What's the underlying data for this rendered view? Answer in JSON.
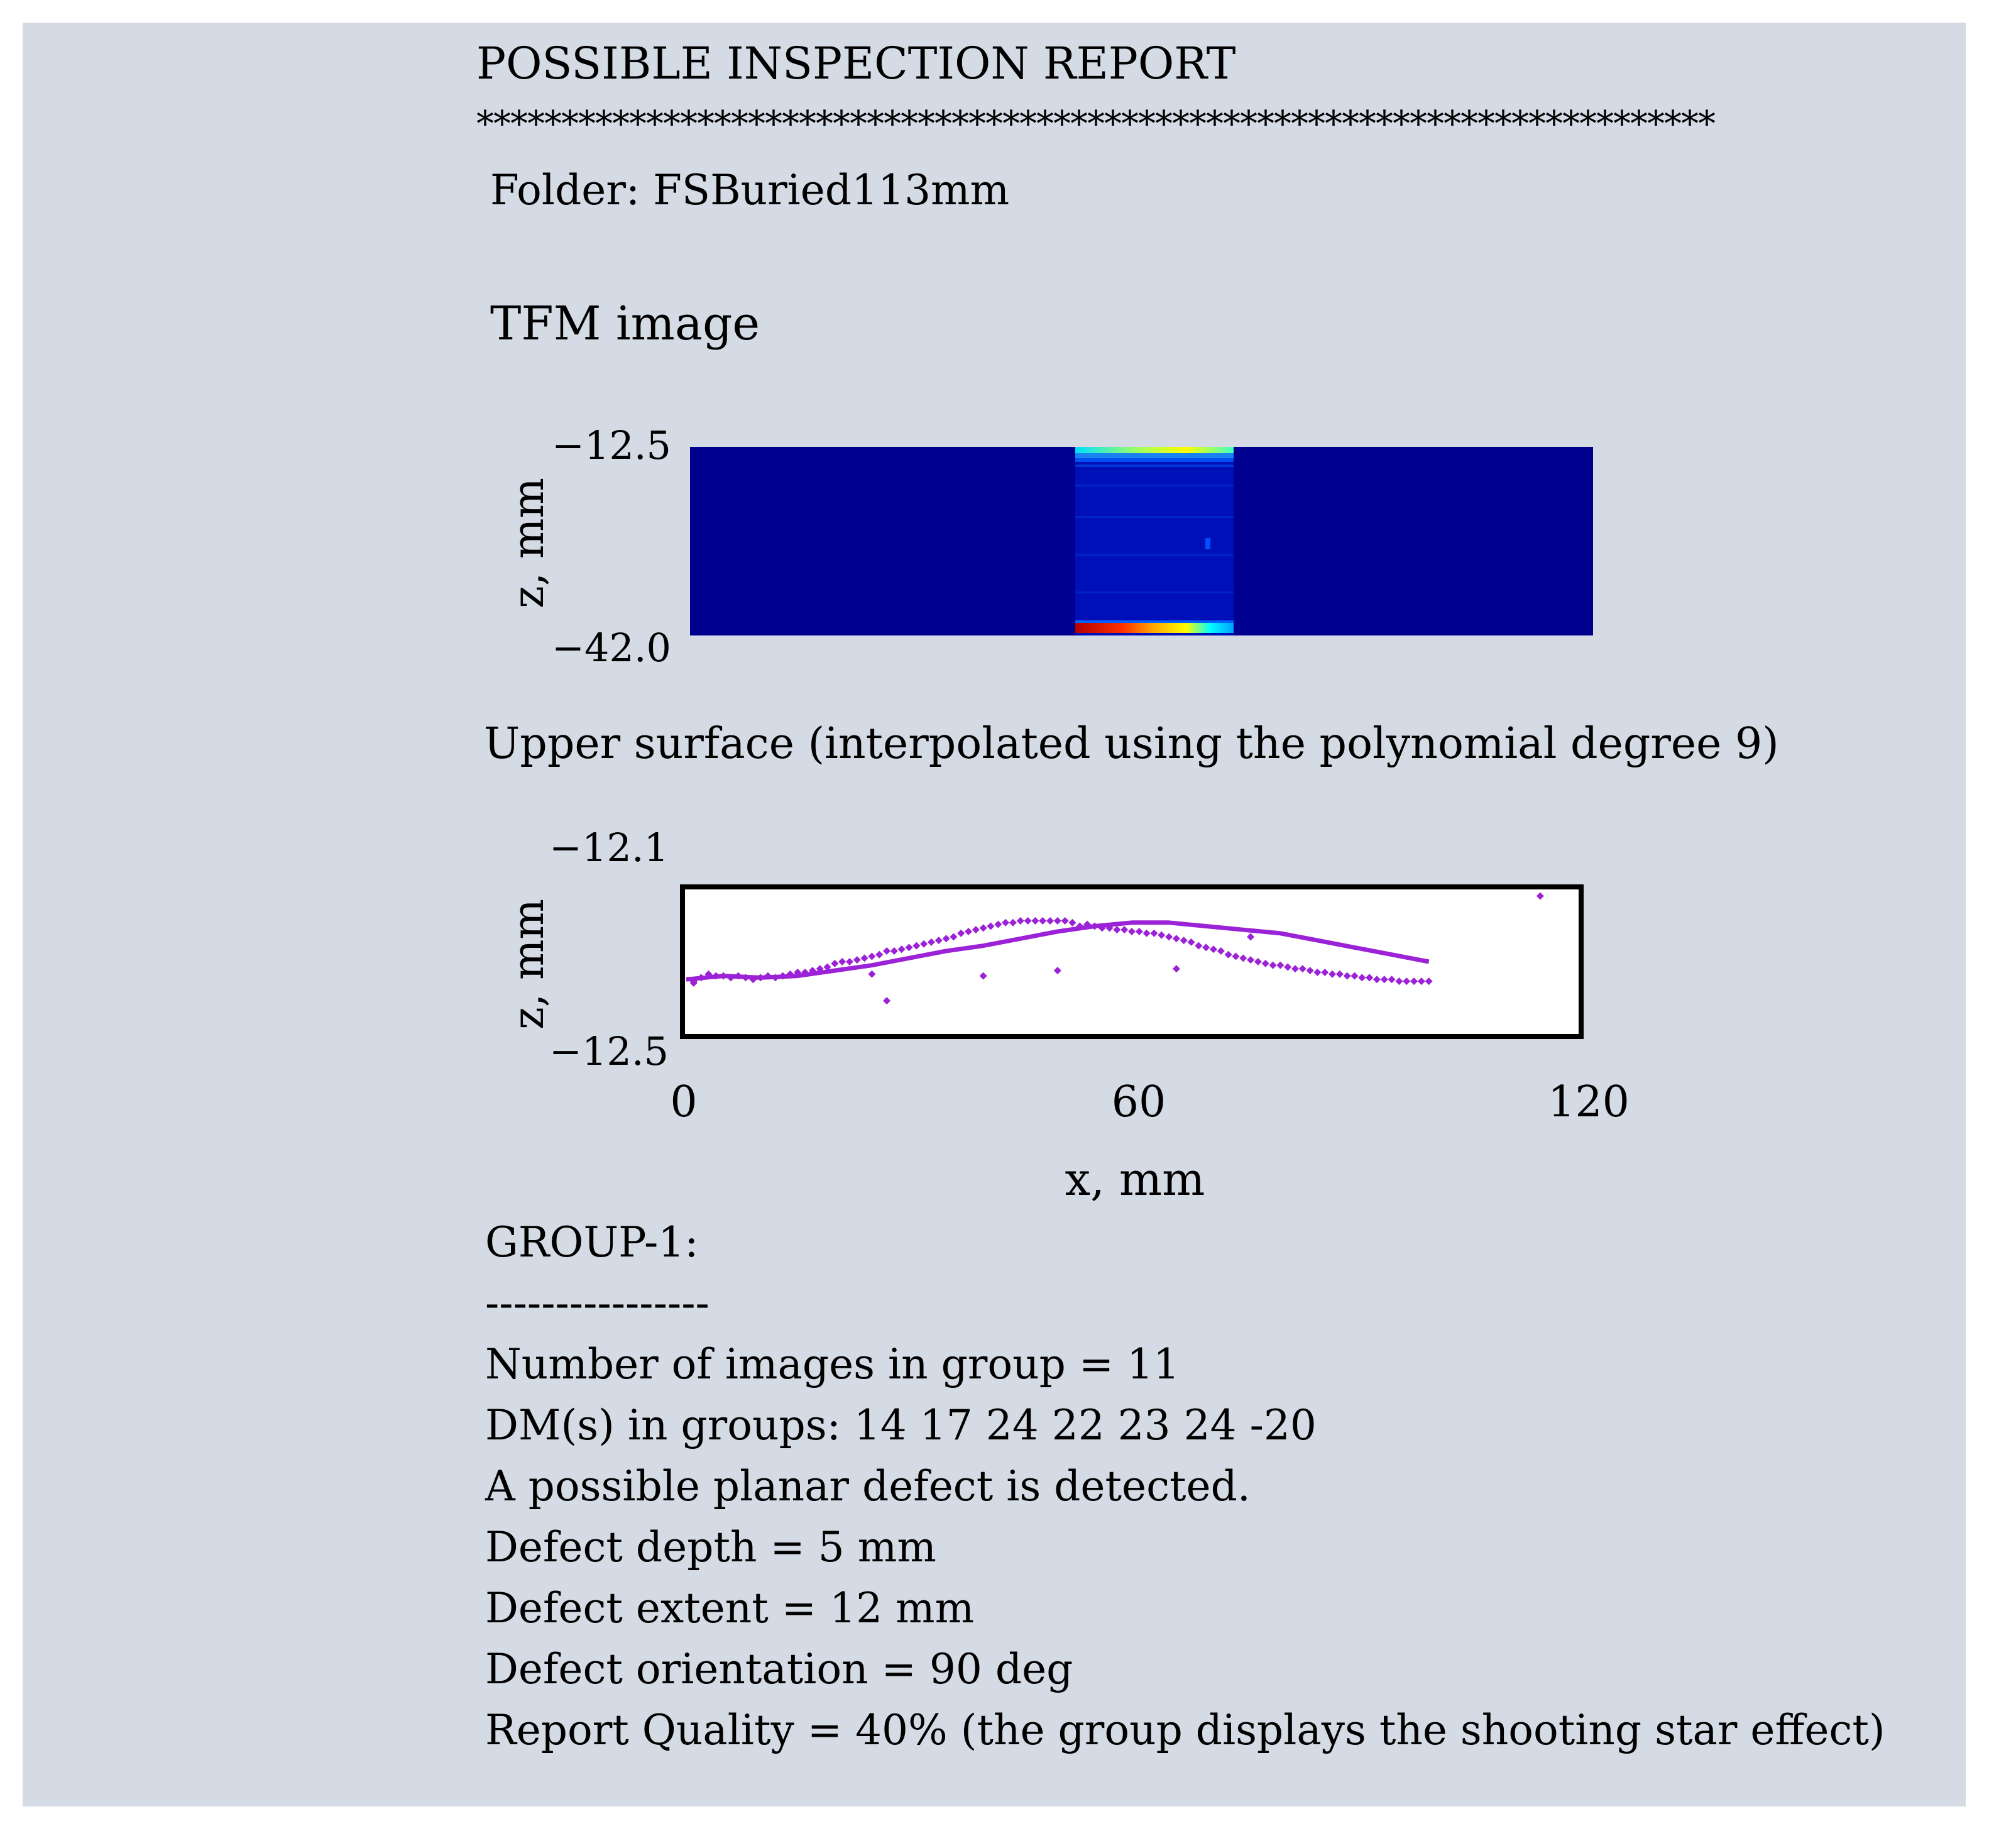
{
  "report": {
    "title": "POSSIBLE INSPECTION REPORT",
    "separator": "*************************************************************************",
    "folder": "Folder: FSBuried113mm"
  },
  "tfm": {
    "heading": "TFM image",
    "ytick_top": "−12.5",
    "ytick_bottom": "−42.0",
    "ylabel": "z, mm",
    "colors": {
      "background": "#00008f",
      "hot": "#b30000",
      "warm": "#ffff00",
      "mid": "#00ffff"
    }
  },
  "surface": {
    "heading": "Upper surface (interpolated using the polynomial degree 9)",
    "ytick_top": "−12.1",
    "ytick_bottom": "−12.5",
    "ylabel": "z, mm",
    "xticks": [
      "0",
      "60",
      "120"
    ],
    "xlabel": "x, mm",
    "color": "#9b22d6"
  },
  "chart_data": {
    "type": "scatter",
    "xlim": [
      0,
      120
    ],
    "ylim": [
      -12.5,
      -12.1
    ],
    "xlabel": "x, mm",
    "ylabel": "z, mm",
    "grid": false,
    "fit_curve": {
      "x": [
        0,
        5,
        10,
        15,
        20,
        25,
        30,
        35,
        40,
        45,
        50,
        55,
        60,
        65,
        70,
        75,
        80,
        85,
        90,
        95,
        100
      ],
      "y": [
        -12.35,
        -12.34,
        -12.345,
        -12.34,
        -12.325,
        -12.31,
        -12.29,
        -12.27,
        -12.255,
        -12.235,
        -12.215,
        -12.2,
        -12.19,
        -12.19,
        -12.2,
        -12.21,
        -12.22,
        -12.24,
        -12.26,
        -12.28,
        -12.3
      ]
    },
    "points": {
      "x": [
        1,
        2,
        3,
        4,
        5,
        6,
        7,
        8,
        9,
        10,
        11,
        12,
        13,
        14,
        15,
        16,
        17,
        18,
        19,
        20,
        21,
        22,
        23,
        24,
        25,
        26,
        27,
        28,
        29,
        30,
        31,
        32,
        33,
        34,
        35,
        36,
        37,
        38,
        39,
        40,
        41,
        42,
        43,
        44,
        45,
        46,
        47,
        48,
        49,
        50,
        51,
        52,
        53,
        54,
        55,
        56,
        57,
        58,
        59,
        60,
        61,
        62,
        63,
        64,
        65,
        66,
        67,
        68,
        69,
        70,
        71,
        72,
        73,
        74,
        75,
        76,
        77,
        78,
        79,
        80,
        81,
        82,
        83,
        84,
        85,
        86,
        87,
        88,
        89,
        90,
        91,
        92,
        93,
        94,
        95,
        96,
        97,
        98,
        99,
        100,
        25,
        27,
        40,
        50,
        66,
        76,
        92,
        115,
        1
      ],
      "y": [
        -12.36,
        -12.345,
        -12.335,
        -12.34,
        -12.34,
        -12.345,
        -12.34,
        -12.345,
        -12.35,
        -12.345,
        -12.34,
        -12.345,
        -12.34,
        -12.335,
        -12.33,
        -12.33,
        -12.325,
        -12.32,
        -12.315,
        -12.305,
        -12.3,
        -12.3,
        -12.295,
        -12.29,
        -12.285,
        -12.28,
        -12.27,
        -12.27,
        -12.265,
        -12.26,
        -12.255,
        -12.25,
        -12.245,
        -12.24,
        -12.235,
        -12.23,
        -12.22,
        -12.215,
        -12.21,
        -12.205,
        -12.2,
        -12.195,
        -12.19,
        -12.19,
        -12.185,
        -12.185,
        -12.185,
        -12.185,
        -12.185,
        -12.185,
        -12.185,
        -12.19,
        -12.2,
        -12.195,
        -12.2,
        -12.205,
        -12.205,
        -12.21,
        -12.21,
        -12.215,
        -12.215,
        -12.22,
        -12.22,
        -12.225,
        -12.23,
        -12.235,
        -12.24,
        -12.245,
        -12.255,
        -12.26,
        -12.265,
        -12.27,
        -12.28,
        -12.285,
        -12.29,
        -12.295,
        -12.3,
        -12.305,
        -12.31,
        -12.31,
        -12.315,
        -12.32,
        -12.32,
        -12.325,
        -12.33,
        -12.33,
        -12.335,
        -12.335,
        -12.34,
        -12.34,
        -12.345,
        -12.345,
        -12.35,
        -12.35,
        -12.35,
        -12.355,
        -12.355,
        -12.355,
        -12.355,
        -12.355,
        -12.335,
        -12.41,
        -12.34,
        -12.325,
        -12.32,
        -12.23,
        -12.345,
        -12.115,
        -12.355
      ]
    }
  },
  "group": {
    "title": "GROUP-1:",
    "dashes": "----------------",
    "num_images": "Number of images in group = 11",
    "dms": "DM(s) in groups: 14 17 24 22 23 24 -20",
    "detection": "A possible planar defect is detected.",
    "depth": "Defect depth = 5 mm",
    "extent": "Defect extent = 12 mm",
    "orientation": "Defect orientation = 90 deg",
    "quality": "Report Quality = 40% (the group displays the shooting star effect)"
  }
}
